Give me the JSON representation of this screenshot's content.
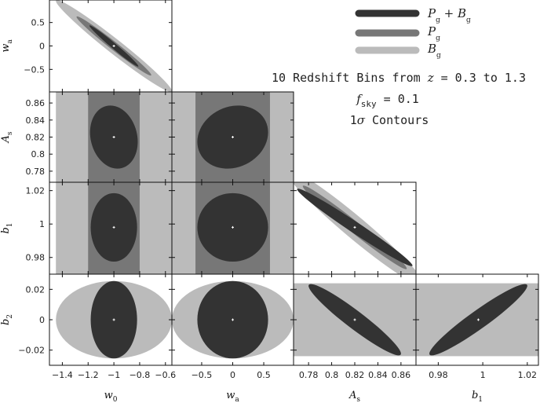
{
  "chart_data": {
    "type": "scatter",
    "title": "",
    "legend": [
      {
        "label": "P_g + B_g",
        "color": "#333333"
      },
      {
        "label": "P_g",
        "color": "#777777"
      },
      {
        "label": "B_g",
        "color": "#bbbbbb"
      }
    ],
    "legend_position": "top-right",
    "info_lines": [
      "10 Redshift Bins from z = 0.3 to 1.3",
      "f_sky = 0.1",
      "1σ Contours"
    ],
    "parameters": [
      {
        "key": "w0",
        "label": "w",
        "sub": "0",
        "fiducial": -1.0,
        "range": [
          -1.5,
          -0.55
        ],
        "ticks": [
          -1.4,
          -1.2,
          -1.0,
          -0.8,
          -0.6
        ],
        "tick_labels": [
          "−1.4",
          "−1.2",
          "−1",
          "−0.8",
          "−0.6"
        ]
      },
      {
        "key": "wa",
        "label": "w",
        "sub": "a",
        "fiducial": 0.0,
        "range": [
          -0.98,
          0.98
        ],
        "ticks": [
          -0.5,
          0.0,
          0.5
        ],
        "tick_labels": [
          "−0.5",
          "0",
          "0.5"
        ]
      },
      {
        "key": "As",
        "label": "A",
        "sub": "s",
        "fiducial": 0.82,
        "range": [
          0.767,
          0.873
        ],
        "ticks": [
          0.78,
          0.8,
          0.82,
          0.84,
          0.86
        ],
        "tick_labels": [
          "0.78",
          "0.8",
          "0.82",
          "0.84",
          "0.86"
        ]
      },
      {
        "key": "b1",
        "label": "b",
        "sub": "1",
        "fiducial": 0.998,
        "range": [
          0.97,
          1.025
        ],
        "ticks": [
          0.98,
          1.0,
          1.02
        ],
        "tick_labels": [
          "0.98",
          "1",
          "1.02"
        ]
      },
      {
        "key": "b2",
        "label": "b",
        "sub": "2",
        "fiducial": 0.0,
        "range": [
          -0.03,
          0.03
        ],
        "ticks": [
          -0.02,
          0.0,
          0.02
        ],
        "tick_labels": [
          "−0.02",
          "0",
          "0.02"
        ]
      }
    ],
    "panels": [
      {
        "x": "w0",
        "y": "wa",
        "contours": [
          {
            "set": "B_g",
            "shape": "ellipse",
            "sx": 0.45,
            "sy": 0.98,
            "rho": -0.98
          },
          {
            "set": "P_g",
            "shape": "ellipse",
            "sx": 0.29,
            "sy": 0.63,
            "rho": -0.985
          },
          {
            "set": "P_g + B_g",
            "shape": "ellipse",
            "sx": 0.19,
            "sy": 0.44,
            "rho": -0.985
          }
        ]
      },
      {
        "x": "w0",
        "y": "As",
        "contours": [
          {
            "set": "B_g",
            "shape": "vband",
            "half_width": 0.45
          },
          {
            "set": "P_g",
            "shape": "vband",
            "half_width": 0.2
          },
          {
            "set": "P_g + B_g",
            "shape": "ellipse",
            "sx": 0.185,
            "sy": 0.037,
            "rho": -0.15
          }
        ]
      },
      {
        "x": "wa",
        "y": "As",
        "contours": [
          {
            "set": "B_g",
            "shape": "vband",
            "half_width": 0.98
          },
          {
            "set": "P_g",
            "shape": "vband",
            "half_width": 0.6
          },
          {
            "set": "P_g + B_g",
            "shape": "ellipse",
            "sx": 0.57,
            "sy": 0.037,
            "rho": 0.15
          }
        ]
      },
      {
        "x": "w0",
        "y": "b1",
        "contours": [
          {
            "set": "B_g",
            "shape": "vband",
            "half_width": 0.45
          },
          {
            "set": "P_g",
            "shape": "vband",
            "half_width": 0.2
          },
          {
            "set": "P_g + B_g",
            "shape": "ellipse",
            "sx": 0.18,
            "sy": 0.0205,
            "rho": 0.0
          }
        ]
      },
      {
        "x": "wa",
        "y": "b1",
        "contours": [
          {
            "set": "B_g",
            "shape": "vband",
            "half_width": 0.98
          },
          {
            "set": "P_g",
            "shape": "vband",
            "half_width": 0.6
          },
          {
            "set": "P_g + B_g",
            "shape": "ellipse",
            "sx": 0.57,
            "sy": 0.0205,
            "rho": 0.0
          }
        ]
      },
      {
        "x": "As",
        "y": "b1",
        "contours": [
          {
            "set": "B_g",
            "shape": "ellipse",
            "sx": 0.06,
            "sy": 0.035,
            "rho": -0.97
          },
          {
            "set": "P_g",
            "shape": "ellipse",
            "sx": 0.045,
            "sy": 0.025,
            "rho": -0.985
          },
          {
            "set": "P_g + B_g",
            "shape": "ellipse",
            "sx": 0.05,
            "sy": 0.0232,
            "rho": -0.985
          }
        ]
      },
      {
        "x": "w0",
        "y": "b2",
        "contours": [
          {
            "set": "B_g",
            "shape": "ellipse",
            "sx": 0.45,
            "sy": 0.0255,
            "rho": 0.0
          },
          {
            "set": "P_g + B_g",
            "shape": "ellipse",
            "sx": 0.18,
            "sy": 0.0255,
            "rho": 0.0
          }
        ]
      },
      {
        "x": "wa",
        "y": "b2",
        "contours": [
          {
            "set": "B_g",
            "shape": "ellipse",
            "sx": 0.98,
            "sy": 0.0255,
            "rho": 0.0
          },
          {
            "set": "P_g + B_g",
            "shape": "ellipse",
            "sx": 0.57,
            "sy": 0.0255,
            "rho": 0.0
          }
        ]
      },
      {
        "x": "As",
        "y": "b2",
        "contours": [
          {
            "set": "B_g",
            "shape": "hband",
            "half_height": 0.024
          },
          {
            "set": "P_g + B_g",
            "shape": "ellipse",
            "sx": 0.04,
            "sy": 0.0235,
            "rho": -0.95
          }
        ]
      },
      {
        "x": "b1",
        "y": "b2",
        "contours": [
          {
            "set": "B_g",
            "shape": "hband",
            "half_height": 0.024
          },
          {
            "set": "P_g + B_g",
            "shape": "ellipse",
            "sx": 0.022,
            "sy": 0.0235,
            "rho": 0.95
          }
        ]
      }
    ],
    "grid": false
  }
}
